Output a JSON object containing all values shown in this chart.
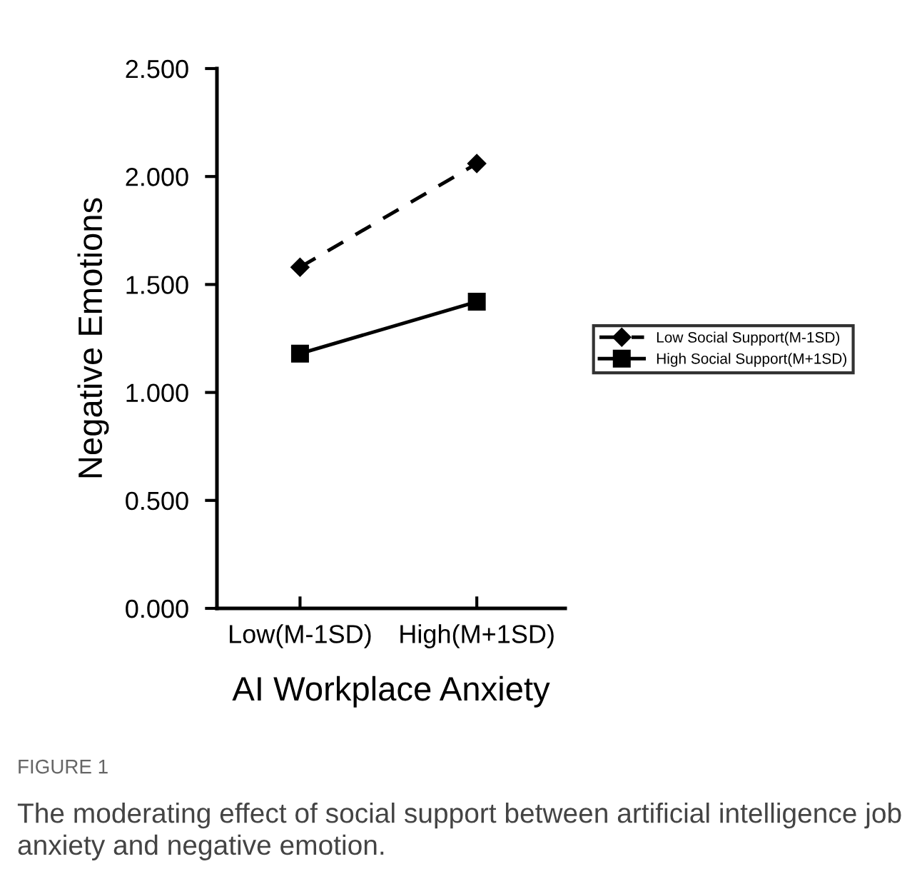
{
  "chart_data": {
    "type": "line",
    "xlabel": "AI Workplace Anxiety",
    "ylabel": "Negative Emotions",
    "categories": [
      "Low(M-1SD)",
      "High(M+1SD)"
    ],
    "series": [
      {
        "name": "Low Social Support(M-1SD)",
        "color": "#000000",
        "values": [
          1.58,
          2.06
        ],
        "marker": "diamond",
        "line_style": "dashed"
      },
      {
        "name": "High Social Support(M+1SD)",
        "color": "#000000",
        "values": [
          1.18,
          1.42
        ],
        "marker": "square",
        "line_style": "solid"
      }
    ],
    "ylim": [
      0,
      2.5
    ],
    "yticks": [
      {
        "value": 0,
        "label": "0.000"
      },
      {
        "value": 0.5,
        "label": "0.500"
      },
      {
        "value": 1,
        "label": "1.000"
      },
      {
        "value": 1.5,
        "label": "1.500"
      },
      {
        "value": 2,
        "label": "2.000"
      },
      {
        "value": 2.5,
        "label": "2.500"
      }
    ],
    "grid": false,
    "legend": "right",
    "annotations": [
      "FIGURE 1",
      "The moderating effect of social support between artificial intelligence job anxiety and negative emotion."
    ]
  }
}
